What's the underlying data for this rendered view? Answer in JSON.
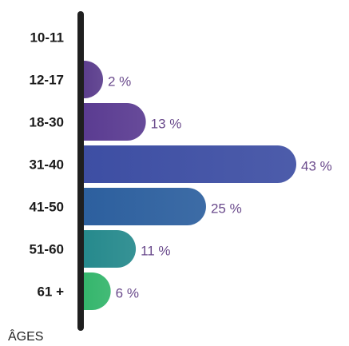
{
  "chart_data": {
    "type": "bar",
    "orientation": "horizontal",
    "categories": [
      "10-11",
      "12-17",
      "18-30",
      "31-40",
      "41-50",
      "51-60",
      "61 +"
    ],
    "values": [
      0,
      2,
      13,
      43,
      25,
      11,
      6
    ],
    "value_labels": [
      "",
      "2 %",
      "13 %",
      "43 %",
      "25 %",
      "11 %",
      "6 %"
    ],
    "title": "",
    "xlabel": "",
    "ylabel": "ÂGES",
    "xlim": [
      0,
      43
    ],
    "grid": false,
    "colors": {
      "axis": "#1f1f1f",
      "label_text": "#1b1b1b",
      "value_text": "#6a4a8c",
      "bars": [
        "#5a3c8c",
        "#5a3c8c",
        "#5a3b91",
        "#3d4ea3",
        "#2c5f9e",
        "#25898c",
        "#33b56b"
      ]
    }
  }
}
